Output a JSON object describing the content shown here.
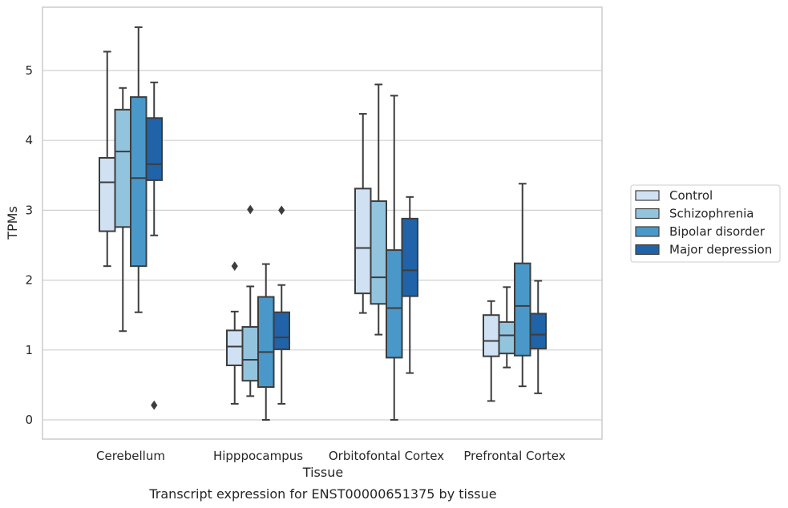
{
  "chart_data": {
    "type": "box",
    "title": "",
    "caption": "Transcript expression for ENST00000651375 by tissue",
    "xlabel": "Tissue",
    "ylabel": "TPMs",
    "ylim": [
      -0.28,
      5.9
    ],
    "yticks": [
      0,
      1,
      2,
      3,
      4,
      5
    ],
    "grid": "horizontal",
    "legend_position": "right",
    "categories": [
      "Cerebellum",
      "Hipppocampus",
      "Orbitofontal Cortex",
      "Prefrontal Cortex"
    ],
    "series": [
      {
        "name": "Control",
        "color": "#cfe1f2",
        "boxes": [
          {
            "whisker_low": 2.2,
            "q1": 2.7,
            "median": 3.4,
            "q3": 3.75,
            "whisker_high": 5.27,
            "outliers": []
          },
          {
            "whisker_low": 0.23,
            "q1": 0.78,
            "median": 1.05,
            "q3": 1.28,
            "whisker_high": 1.55,
            "outliers": [
              2.2
            ]
          },
          {
            "whisker_low": 1.53,
            "q1": 1.81,
            "median": 2.46,
            "q3": 3.31,
            "whisker_high": 4.38,
            "outliers": []
          },
          {
            "whisker_low": 0.27,
            "q1": 0.91,
            "median": 1.13,
            "q3": 1.5,
            "whisker_high": 1.7,
            "outliers": []
          }
        ]
      },
      {
        "name": "Schizophrenia",
        "color": "#93c4de",
        "boxes": [
          {
            "whisker_low": 1.27,
            "q1": 2.76,
            "median": 3.84,
            "q3": 4.44,
            "whisker_high": 4.75,
            "outliers": []
          },
          {
            "whisker_low": 0.34,
            "q1": 0.56,
            "median": 0.86,
            "q3": 1.33,
            "whisker_high": 1.91,
            "outliers": [
              3.01
            ]
          },
          {
            "whisker_low": 1.22,
            "q1": 1.66,
            "median": 2.04,
            "q3": 3.13,
            "whisker_high": 4.8,
            "outliers": []
          },
          {
            "whisker_low": 0.75,
            "q1": 0.95,
            "median": 1.21,
            "q3": 1.4,
            "whisker_high": 1.9,
            "outliers": []
          }
        ]
      },
      {
        "name": "Bipolar disorder",
        "color": "#4a98c9",
        "boxes": [
          {
            "whisker_low": 1.54,
            "q1": 2.2,
            "median": 3.46,
            "q3": 4.62,
            "whisker_high": 5.62,
            "outliers": []
          },
          {
            "whisker_low": 0.0,
            "q1": 0.47,
            "median": 0.97,
            "q3": 1.76,
            "whisker_high": 2.23,
            "outliers": []
          },
          {
            "whisker_low": 0.0,
            "q1": 0.89,
            "median": 1.6,
            "q3": 2.43,
            "whisker_high": 4.64,
            "outliers": []
          },
          {
            "whisker_low": 0.48,
            "q1": 0.92,
            "median": 1.63,
            "q3": 2.24,
            "whisker_high": 3.38,
            "outliers": []
          }
        ]
      },
      {
        "name": "Major depression",
        "color": "#2063a8",
        "boxes": [
          {
            "whisker_low": 2.64,
            "q1": 3.43,
            "median": 3.66,
            "q3": 4.32,
            "whisker_high": 4.83,
            "outliers": [
              0.21
            ]
          },
          {
            "whisker_low": 0.23,
            "q1": 1.01,
            "median": 1.18,
            "q3": 1.54,
            "whisker_high": 1.93,
            "outliers": [
              3.0
            ]
          },
          {
            "whisker_low": 0.67,
            "q1": 1.77,
            "median": 2.14,
            "q3": 2.88,
            "whisker_high": 3.19,
            "outliers": []
          },
          {
            "whisker_low": 0.38,
            "q1": 1.02,
            "median": 1.22,
            "q3": 1.52,
            "whisker_high": 1.99,
            "outliers": []
          }
        ]
      }
    ]
  }
}
